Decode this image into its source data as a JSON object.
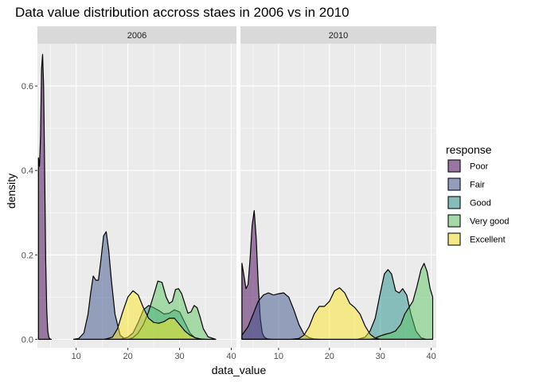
{
  "chart_data": {
    "type": "area",
    "title": "Data value distribution accross staes in 2006 vs in 2010",
    "xlabel": "data_value",
    "ylabel": "density",
    "xlim": [
      2.5,
      41
    ],
    "ylim": [
      -0.02,
      0.7
    ],
    "x_ticks": [
      10,
      20,
      30,
      40
    ],
    "y_ticks": [
      0.0,
      0.2,
      0.4,
      0.6
    ],
    "y_tick_labels": [
      "0.0",
      "0.2",
      "0.4",
      "0.6"
    ],
    "grid": true,
    "legend": {
      "title": "response",
      "position": "right",
      "entries": [
        "Poor",
        "Fair",
        "Good",
        "Very good",
        "Excellent"
      ]
    },
    "colors": {
      "Poor": "#440154",
      "Fair": "#3B528B",
      "Good": "#21908C",
      "Very good": "#5DC863",
      "Excellent": "#FDE725",
      "panel_bg": "#EBEBEB",
      "strip_bg": "#D9D9D9"
    },
    "fill_opacity": 0.5,
    "facets": [
      {
        "label": "2006",
        "series": [
          {
            "name": "Poor",
            "x": [
              2.7,
              2.9,
              3.1,
              3.3,
              3.5,
              3.7,
              3.9,
              4.1,
              4.3,
              4.5,
              4.7,
              4.9,
              5.2
            ],
            "y": [
              0.43,
              0.41,
              0.48,
              0.64,
              0.675,
              0.6,
              0.4,
              0.19,
              0.07,
              0.02,
              0.005,
              0.001,
              0
            ]
          },
          {
            "name": "Fair",
            "x": [
              9.5,
              10.5,
              11.5,
              12.3,
              12.8,
              13.3,
              13.8,
              14.3,
              14.8,
              15.3,
              15.8,
              16.3,
              16.8,
              17.5,
              18.5,
              19.5
            ],
            "y": [
              0,
              0.002,
              0.015,
              0.06,
              0.11,
              0.15,
              0.14,
              0.14,
              0.19,
              0.245,
              0.255,
              0.21,
              0.14,
              0.06,
              0.01,
              0
            ]
          },
          {
            "name": "Good",
            "x": [
              18.5,
              20,
              21,
              22,
              23,
              24,
              25,
              26,
              27,
              28,
              29,
              30,
              31,
              32,
              33,
              34.5
            ],
            "y": [
              0,
              0.005,
              0.015,
              0.04,
              0.07,
              0.08,
              0.075,
              0.068,
              0.06,
              0.062,
              0.07,
              0.065,
              0.04,
              0.015,
              0.003,
              0
            ]
          },
          {
            "name": "Very good",
            "x": [
              20,
              21,
              22,
              23,
              24,
              25,
              25.8,
              26.6,
              27.4,
              28,
              28.6,
              29.2,
              29.8,
              30.4,
              31,
              31.6,
              32.2,
              32.8,
              33.4,
              34,
              34.6,
              35.5,
              37
            ],
            "y": [
              0,
              0.004,
              0.015,
              0.035,
              0.065,
              0.105,
              0.138,
              0.135,
              0.1,
              0.085,
              0.09,
              0.118,
              0.12,
              0.108,
              0.085,
              0.062,
              0.065,
              0.08,
              0.075,
              0.052,
              0.025,
              0.006,
              0
            ]
          },
          {
            "name": "Excellent",
            "x": [
              15.5,
              17,
              18,
              19,
              20,
              21,
              22,
              23,
              24,
              25,
              26,
              27,
              28,
              29,
              30,
              31,
              32,
              33,
              34,
              35
            ],
            "y": [
              0,
              0.005,
              0.025,
              0.065,
              0.1,
              0.115,
              0.105,
              0.075,
              0.05,
              0.04,
              0.038,
              0.042,
              0.05,
              0.05,
              0.035,
              0.02,
              0.01,
              0.004,
              0.001,
              0
            ]
          }
        ]
      },
      {
        "label": "2010",
        "series": [
          {
            "name": "Poor",
            "x": [
              2.8,
              3.2,
              3.6,
              4.0,
              4.4,
              4.8,
              5.2,
              5.6,
              6.0,
              6.4,
              6.8,
              7.2,
              7.8,
              8.5
            ],
            "y": [
              0.18,
              0.15,
              0.12,
              0.13,
              0.19,
              0.27,
              0.305,
              0.24,
              0.13,
              0.05,
              0.015,
              0.005,
              0.001,
              0
            ]
          },
          {
            "name": "Fair",
            "x": [
              2.8,
              4,
              5,
              6,
              7,
              8,
              9,
              10,
              11,
              12,
              13,
              14,
              15,
              16,
              17,
              18
            ],
            "y": [
              0.01,
              0.03,
              0.06,
              0.09,
              0.105,
              0.11,
              0.105,
              0.108,
              0.11,
              0.1,
              0.07,
              0.035,
              0.012,
              0.004,
              0.001,
              0
            ]
          },
          {
            "name": "Good",
            "x": [
              25.5,
              27,
              28,
              29,
              30,
              30.8,
              31.5,
              32.2,
              33,
              33.7,
              34.4,
              35.2,
              36,
              37,
              38,
              39
            ],
            "y": [
              0,
              0.005,
              0.02,
              0.05,
              0.11,
              0.155,
              0.165,
              0.155,
              0.115,
              0.11,
              0.12,
              0.105,
              0.06,
              0.02,
              0.004,
              0
            ]
          },
          {
            "name": "Very good",
            "x": [
              28,
              29,
              30,
              31,
              32,
              33,
              34,
              34.8,
              35.6,
              36.4,
              37.2,
              38,
              38.6,
              39.2,
              39.8,
              40.3
            ],
            "y": [
              0,
              0.003,
              0.008,
              0.012,
              0.015,
              0.02,
              0.035,
              0.06,
              0.075,
              0.09,
              0.125,
              0.165,
              0.18,
              0.16,
              0.12,
              0.1
            ]
          },
          {
            "name": "Excellent",
            "x": [
              12.5,
              14,
              15,
              16,
              17,
              18,
              19,
              20,
              21,
              22,
              23,
              24,
              25,
              26,
              27,
              28,
              29,
              30
            ],
            "y": [
              0,
              0.002,
              0.01,
              0.03,
              0.06,
              0.078,
              0.078,
              0.09,
              0.115,
              0.122,
              0.11,
              0.085,
              0.075,
              0.06,
              0.032,
              0.012,
              0.003,
              0
            ]
          }
        ]
      }
    ]
  }
}
